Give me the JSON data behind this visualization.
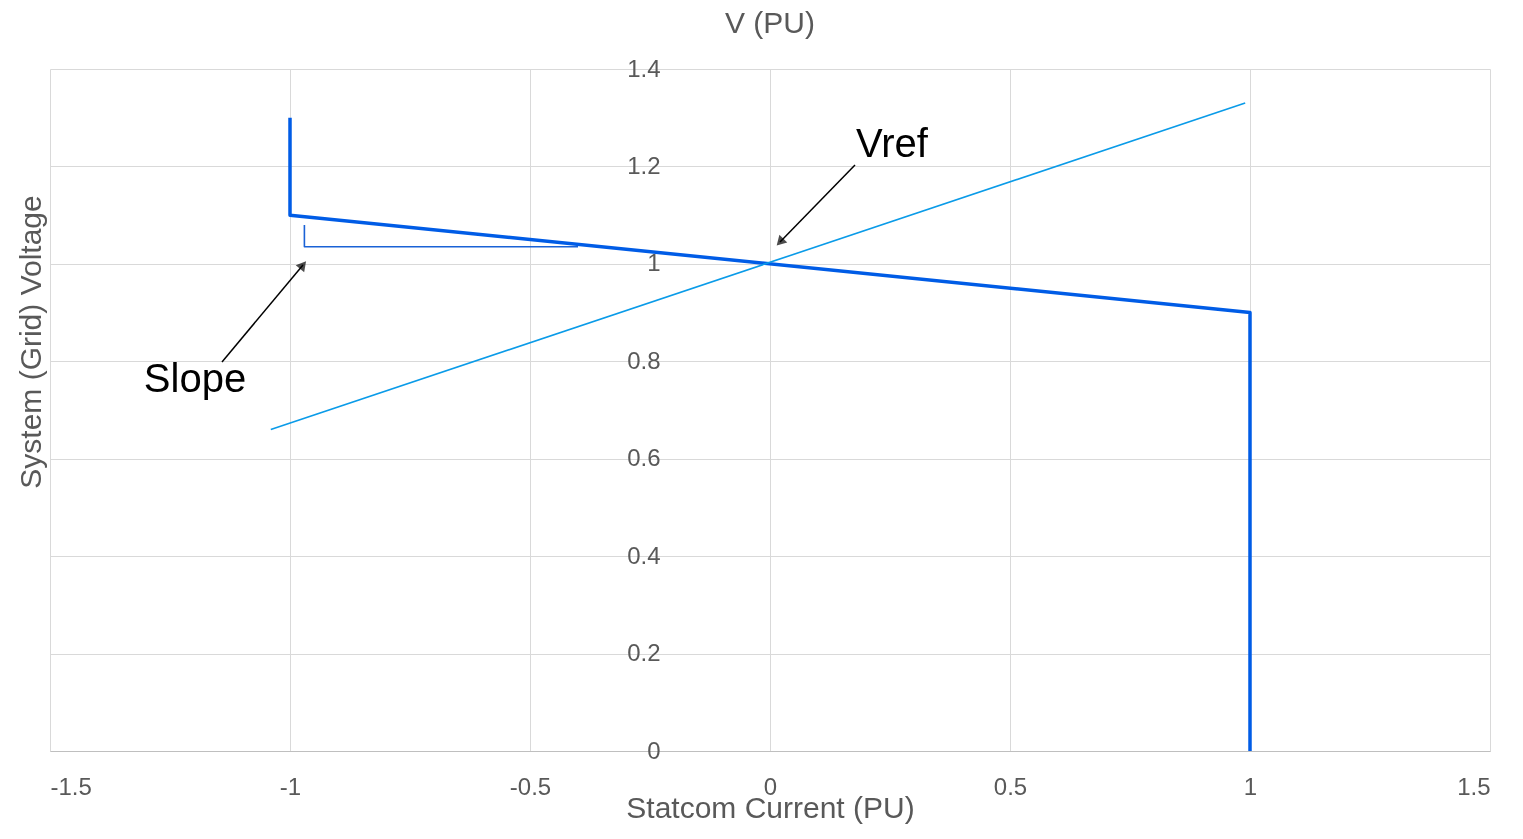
{
  "chart_data": {
    "type": "line",
    "title": "V (PU)",
    "xlabel": "Statcom Current (PU)",
    "ylabel": "System (Grid) Voltage",
    "series": [
      {
        "color": "#005ce6",
        "x": [
          -1,
          -1,
          1,
          1
        ],
        "values": [
          1.3,
          1.1,
          0.9,
          0
        ]
      },
      {
        "color": "#0a9be8",
        "x": [
          -1.04,
          0.99
        ],
        "values": [
          0.66,
          1.33
        ]
      },
      {
        "color": "#1a62d6",
        "x": [
          -0.97,
          -0.97,
          -0.4
        ],
        "values": [
          1.08,
          1.035,
          1.035
        ]
      }
    ],
    "annotations": [
      "Vref",
      "Slope"
    ],
    "xlim": [
      -1.5,
      1.5
    ],
    "xticks": [
      -1.5,
      -1,
      -0.5,
      0,
      0.5,
      1,
      1.5
    ],
    "ylim": [
      0,
      1.4
    ],
    "yticks": [
      0,
      0.2,
      0.4,
      0.6,
      0.8,
      1,
      1.2,
      1.4
    ],
    "grid": true,
    "marker": "none",
    "line_style": "solid"
  }
}
